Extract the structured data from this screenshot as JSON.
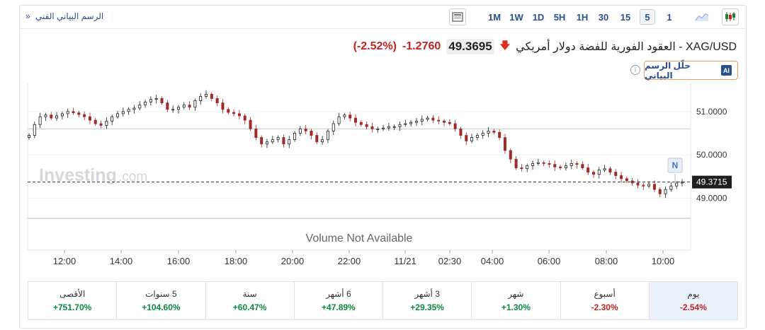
{
  "toolbar": {
    "tech_chart_link": "الرسم البياني الفني",
    "tech_chart_arrow": "»",
    "timeframes": [
      "1M",
      "1W",
      "1D",
      "5H",
      "1H",
      "30",
      "15",
      "5",
      "1"
    ],
    "active_timeframe": "5"
  },
  "instrument": {
    "title": "XAG/USD - العقود الفورية للفضة دولار أمريكي",
    "price": "49.3695",
    "change": "-1.2760",
    "change_pct": "(-2.52%)",
    "direction_icon": "arrow-down-icon",
    "direction_color": "#d93025"
  },
  "ai_button": {
    "badge": "AI",
    "label": "حلّل الرسم البياني"
  },
  "info_icon": "i",
  "watermark": "Investing.com",
  "volume_note": "Volume Not Available",
  "price_marker": "N",
  "chart_data": {
    "type": "candlestick",
    "y_ticks": [
      "51.0000",
      "50.0000",
      "49.0000"
    ],
    "current_price_label": "49.3715",
    "x_ticks": [
      "12:00",
      "14:00",
      "16:00",
      "18:00",
      "20:00",
      "22:00",
      "11/21",
      "02:30",
      "04:00",
      "06:00",
      "08:00",
      "10:00"
    ],
    "ylim": [
      48.55,
      51.65
    ],
    "close_series": [
      50.45,
      50.7,
      50.88,
      50.92,
      50.85,
      50.9,
      50.95,
      51.0,
      50.97,
      50.93,
      50.88,
      50.8,
      50.72,
      50.68,
      50.78,
      50.88,
      50.95,
      51.0,
      51.05,
      51.08,
      51.15,
      51.22,
      51.28,
      51.3,
      51.2,
      51.05,
      51.05,
      51.1,
      51.15,
      51.1,
      51.25,
      51.35,
      51.4,
      51.3,
      51.2,
      51.05,
      50.98,
      50.95,
      50.9,
      50.8,
      50.6,
      50.4,
      50.25,
      50.3,
      50.35,
      50.4,
      50.25,
      50.35,
      50.5,
      50.6,
      50.55,
      50.45,
      50.3,
      50.35,
      50.55,
      50.72,
      50.88,
      50.92,
      50.85,
      50.75,
      50.7,
      50.65,
      50.6,
      50.6,
      50.62,
      50.65,
      50.65,
      50.7,
      50.72,
      50.75,
      50.78,
      50.82,
      50.85,
      50.8,
      50.78,
      50.75,
      50.72,
      50.6,
      50.45,
      50.32,
      50.4,
      50.45,
      50.5,
      50.55,
      50.52,
      50.4,
      50.1,
      49.9,
      49.7,
      49.68,
      49.75,
      49.8,
      49.82,
      49.8,
      49.78,
      49.72,
      49.7,
      49.75,
      49.8,
      49.78,
      49.7,
      49.6,
      49.55,
      49.65,
      49.68,
      49.6,
      49.52,
      49.45,
      49.4,
      49.35,
      49.3,
      49.28,
      49.32,
      49.2,
      49.1,
      49.2,
      49.28,
      49.35,
      49.37
    ],
    "weekly_high_approx": 50.6,
    "performance": [
      {
        "label": "يوم",
        "value": "-2.54%",
        "sign": "neg"
      },
      {
        "label": "أسبوع",
        "value": "-2.30%",
        "sign": "neg"
      },
      {
        "label": "شهر",
        "value": "+1.30%",
        "sign": "pos"
      },
      {
        "label": "3 أشهر",
        "value": "+29.35%",
        "sign": "pos"
      },
      {
        "label": "6 أشهر",
        "value": "+47.89%",
        "sign": "pos"
      },
      {
        "label": "سنة",
        "value": "+60.47%",
        "sign": "pos"
      },
      {
        "label": "5 سنوات",
        "value": "+104.60%",
        "sign": "pos"
      },
      {
        "label": "الأقصى",
        "value": "+751.70%",
        "sign": "pos"
      }
    ],
    "selected_period": "يوم"
  }
}
